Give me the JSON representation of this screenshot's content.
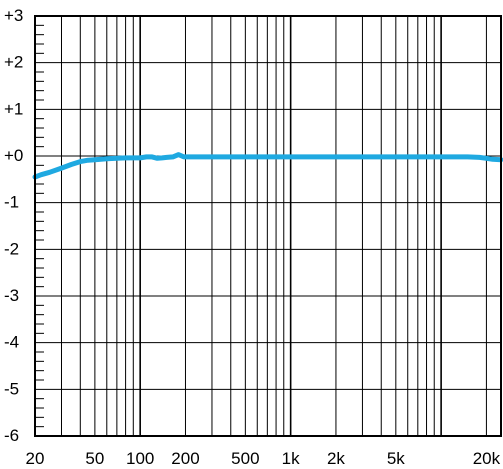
{
  "chart_data": {
    "type": "line",
    "title": "",
    "xlabel": "",
    "ylabel": "",
    "x_scale": "log",
    "xlim": [
      20,
      25000
    ],
    "ylim": [
      -6,
      3
    ],
    "grid": true,
    "x_tick_labels": [
      {
        "value": 20,
        "label": "20"
      },
      {
        "value": 50,
        "label": "50"
      },
      {
        "value": 100,
        "label": "100"
      },
      {
        "value": 200,
        "label": "200"
      },
      {
        "value": 500,
        "label": "500"
      },
      {
        "value": 1000,
        "label": "1k"
      },
      {
        "value": 2000,
        "label": "2k"
      },
      {
        "value": 5000,
        "label": "5k"
      },
      {
        "value": 20000,
        "label": "20k"
      }
    ],
    "y_tick_labels": [
      {
        "value": 3,
        "label": "+3"
      },
      {
        "value": 2,
        "label": "+2"
      },
      {
        "value": 1,
        "label": "+1"
      },
      {
        "value": 0,
        "label": "+0"
      },
      {
        "value": -1,
        "label": "-1"
      },
      {
        "value": -2,
        "label": "-2"
      },
      {
        "value": -3,
        "label": "-3"
      },
      {
        "value": -4,
        "label": "-4"
      },
      {
        "value": -5,
        "label": "-5"
      },
      {
        "value": -6,
        "label": "-6"
      }
    ],
    "series": [
      {
        "color": "#1fa9e1",
        "points": [
          [
            20,
            -0.45
          ],
          [
            22,
            -0.4
          ],
          [
            25,
            -0.35
          ],
          [
            30,
            -0.26
          ],
          [
            35,
            -0.18
          ],
          [
            40,
            -0.12
          ],
          [
            45,
            -0.09
          ],
          [
            50,
            -0.08
          ],
          [
            60,
            -0.06
          ],
          [
            70,
            -0.05
          ],
          [
            80,
            -0.04
          ],
          [
            100,
            -0.04
          ],
          [
            110,
            -0.02
          ],
          [
            120,
            -0.02
          ],
          [
            130,
            -0.05
          ],
          [
            140,
            -0.04
          ],
          [
            150,
            -0.03
          ],
          [
            165,
            -0.02
          ],
          [
            180,
            0.03
          ],
          [
            195,
            -0.02
          ],
          [
            220,
            -0.02
          ],
          [
            300,
            -0.02
          ],
          [
            500,
            -0.02
          ],
          [
            1000,
            -0.02
          ],
          [
            2000,
            -0.02
          ],
          [
            5000,
            -0.02
          ],
          [
            10000,
            -0.02
          ],
          [
            15000,
            -0.02
          ],
          [
            18000,
            -0.03
          ],
          [
            20000,
            -0.05
          ],
          [
            22000,
            -0.07
          ],
          [
            25000,
            -0.08
          ]
        ]
      }
    ]
  }
}
